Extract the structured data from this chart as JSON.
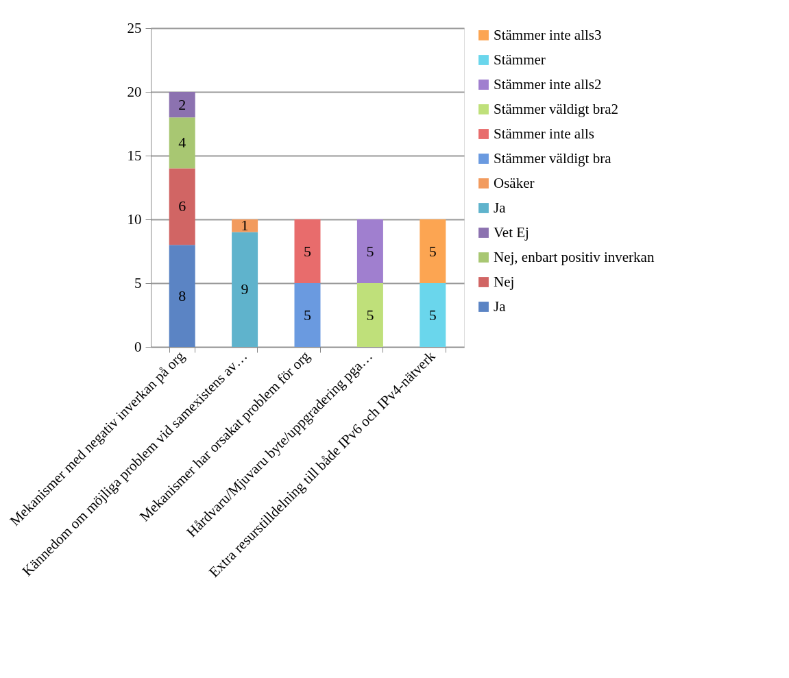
{
  "chart_data": {
    "type": "bar",
    "stacked": true,
    "categories": [
      "Mekanismer med negativ inverkan på org",
      "Kännedom om möjliga problem vid samexistens av…",
      "Mekanismer har orsakat problem för org",
      "Hårdvaru/Mjuvaru byte/uppgradering pga…",
      "Extra resurstilldelning till både IPv6 och IPv4-nätverk"
    ],
    "series": [
      {
        "name": "Ja",
        "color": "#5b84c4",
        "values": [
          8,
          null,
          null,
          null,
          null
        ]
      },
      {
        "name": "Nej",
        "color": "#d16564",
        "values": [
          6,
          null,
          null,
          null,
          null
        ]
      },
      {
        "name": "Nej, enbart positiv inverkan",
        "color": "#a8c772",
        "values": [
          4,
          null,
          null,
          null,
          null
        ]
      },
      {
        "name": "Vet Ej",
        "color": "#8c72b0",
        "values": [
          2,
          null,
          null,
          null,
          null
        ]
      },
      {
        "name": "Ja",
        "color": "#5fb3cc",
        "values": [
          null,
          9,
          null,
          null,
          null
        ]
      },
      {
        "name": "Osäker",
        "color": "#f29b5e",
        "values": [
          null,
          1,
          null,
          null,
          null
        ]
      },
      {
        "name": "Stämmer väldigt bra",
        "color": "#6a9ae0",
        "values": [
          null,
          null,
          5,
          null,
          null
        ]
      },
      {
        "name": "Stämmer inte alls",
        "color": "#e86c6c",
        "values": [
          null,
          null,
          5,
          null,
          null
        ]
      },
      {
        "name": "Stämmer väldigt bra2",
        "color": "#bfe07a",
        "values": [
          null,
          null,
          null,
          5,
          null
        ]
      },
      {
        "name": "Stämmer inte alls2",
        "color": "#a07fcf",
        "values": [
          null,
          null,
          null,
          5,
          null
        ]
      },
      {
        "name": "Stämmer",
        "color": "#6ad6ec",
        "values": [
          null,
          null,
          null,
          null,
          5
        ]
      },
      {
        "name": "Stämmer inte alls3",
        "color": "#fca552",
        "values": [
          null,
          null,
          null,
          null,
          5
        ]
      }
    ],
    "ylim": [
      0,
      25
    ],
    "yticks": [
      0,
      5,
      10,
      15,
      20,
      25
    ],
    "grid": "y",
    "legend": "right",
    "data_labels": true
  }
}
